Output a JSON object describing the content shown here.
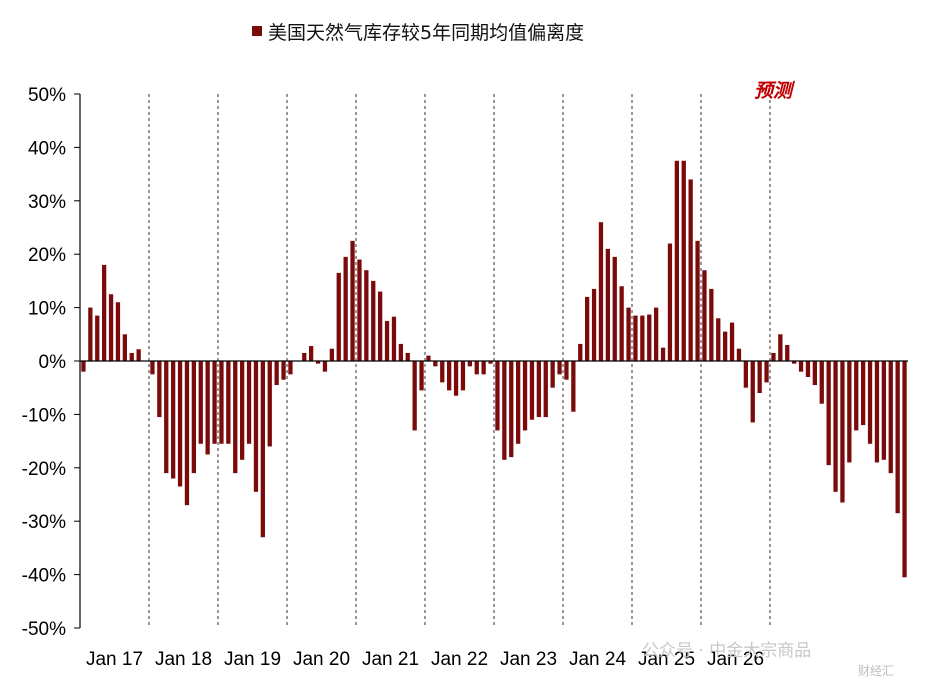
{
  "chart_data": {
    "type": "bar",
    "title": "",
    "legend": {
      "label": "美国天然气库存较5年同期均值偏离度",
      "position": "top"
    },
    "annotation": "预测",
    "watermark": "公众号 · 中金大宗商品",
    "logo_text": "财经汇",
    "colors": {
      "bar": "#7b0a0a",
      "axis": "#000000",
      "divider": "#333333"
    },
    "ylim": [
      -50,
      50
    ],
    "yticks": [
      "-50%",
      "-40%",
      "-30%",
      "-20%",
      "-10%",
      "0%",
      "10%",
      "20%",
      "30%",
      "40%",
      "50%"
    ],
    "ytick_values": [
      -50,
      -40,
      -30,
      -20,
      -10,
      0,
      10,
      20,
      30,
      40,
      50
    ],
    "xtick_labels": [
      "Jan 17",
      "Jan 18",
      "Jan 19",
      "Jan 20",
      "Jan 21",
      "Jan 22",
      "Jan 23",
      "Jan 24",
      "Jan 25",
      "Jan 26"
    ],
    "year_start_index": [
      0,
      10,
      20,
      30,
      40,
      50,
      60,
      70,
      80,
      90,
      100
    ],
    "forecast_start_index": 80,
    "values": [
      -2,
      10,
      8.5,
      18,
      12.5,
      11,
      5,
      1.5,
      2.2,
      0,
      -2.5,
      -10.5,
      -21,
      -22,
      -23.5,
      -27,
      -21,
      -15.5,
      -17.5,
      -15.5,
      -15.5,
      -15.5,
      -21,
      -18.5,
      -15.5,
      -24.5,
      -33,
      -16,
      -4.5,
      -3.5,
      -2.5,
      0,
      1.5,
      2.8,
      -0.5,
      -2,
      2.3,
      16.5,
      19.5,
      22.5,
      19,
      17,
      15,
      13,
      7.5,
      8.3,
      3.2,
      1.5,
      -13,
      -5.5,
      1,
      -1,
      -4,
      -5.5,
      -6.5,
      -5.5,
      -1,
      -2.5,
      -2.5,
      -0.5,
      -13,
      -18.5,
      -18,
      -15.5,
      -13,
      -11,
      -10.5,
      -10.5,
      -5,
      -2.5,
      -3.5,
      -9.5,
      3.2,
      12,
      13.5,
      26,
      21,
      19.5,
      14,
      10,
      8.5,
      8.5,
      8.7,
      10,
      2.5,
      22,
      37.5,
      37.5,
      34,
      22.5,
      17,
      13.5,
      8,
      5.5,
      7.2,
      2.3,
      -5,
      -11.5,
      -6,
      -4,
      1.5,
      5,
      3,
      -0.5,
      -2,
      -3,
      -4.5,
      -8,
      -19.5,
      -24.5,
      -26.5,
      -19,
      -13,
      -12,
      -15.5,
      -19,
      -18.5,
      -21,
      -28.5,
      -40.5
    ]
  }
}
